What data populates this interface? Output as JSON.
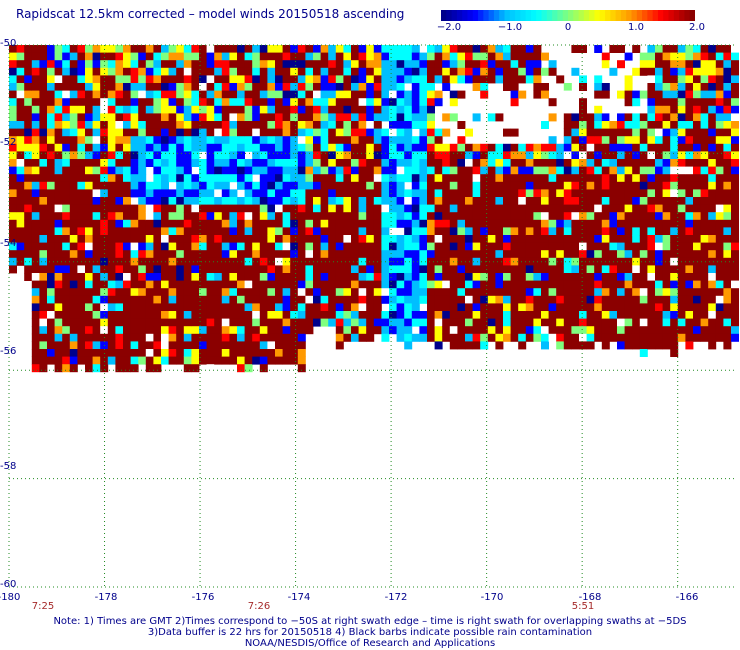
{
  "title": "Rapidscat 12.5km corrected – model winds 20150518 ascending",
  "colorbar": {
    "labels": [
      "−2.0",
      "−1.0",
      "0",
      "1.0",
      "2.0"
    ],
    "range": [
      -2.0,
      2.0
    ],
    "colors": [
      "#00008b",
      "#0000ff",
      "#00bfff",
      "#00ffff",
      "#7fff7f",
      "#ffff00",
      "#ff9900",
      "#ff0000",
      "#8b0000"
    ]
  },
  "map": {
    "lon_ticks": [
      "-180",
      "-178",
      "-176",
      "-174",
      "-172",
      "-170",
      "-168",
      "-166"
    ],
    "lat_ticks": [
      "-50",
      "-52",
      "-54",
      "-56",
      "-58",
      "-60"
    ],
    "lon_range": [
      -180,
      -164.8
    ],
    "lat_range": [
      -60,
      -50
    ],
    "grid": true,
    "grid_color": "#228b22",
    "swath_times": [
      {
        "label": "7:25",
        "lon": -179.4
      },
      {
        "label": "7:26",
        "lon": -175.2
      },
      {
        "label": "5:51",
        "lon": -167.9
      }
    ],
    "dominant_value_color": "#8b0000",
    "missing_color": "#ffffff"
  },
  "notes": [
    "Note: 1) Times are GMT 2)Times correspond to −50S at right swath edge – time is right swath for overlapping swaths at −5DS",
    "3)Data buffer is 22 hrs for 20150518 4) Black barbs indicate possible rain contamination",
    "NOAA/NESDIS/Office of Research and Applications"
  ]
}
